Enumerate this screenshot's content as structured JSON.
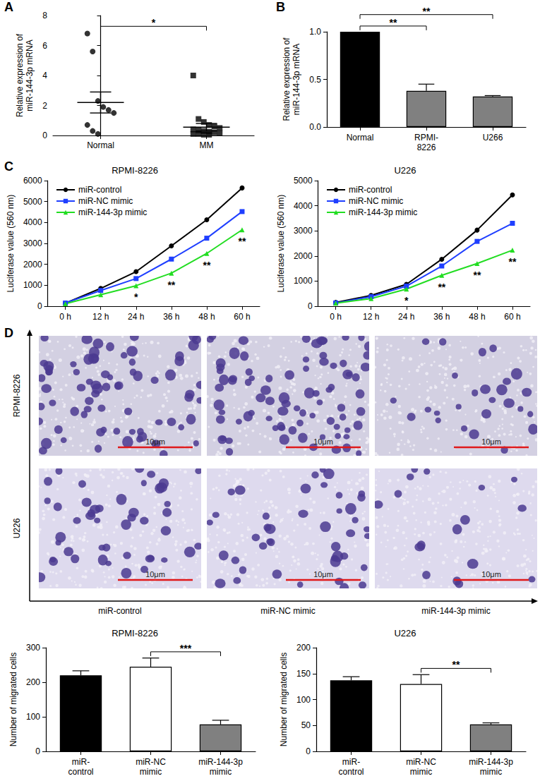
{
  "chart_data": [
    {
      "panel": "A",
      "type": "scatter",
      "categories": [
        "Normal",
        "MM"
      ],
      "points": [
        [
          6.8,
          5.6,
          2.3,
          1.9,
          1.7,
          1.5,
          0.7,
          0.3,
          0.1
        ],
        [
          4.0,
          1.1,
          0.9,
          0.7,
          0.6,
          0.5,
          0.4,
          0.35,
          0.3,
          0.25,
          0.2,
          0.15,
          0.1,
          0.1,
          0.05,
          0.05
        ]
      ],
      "markers": [
        "circle",
        "square"
      ],
      "color": "#000000",
      "mean": [
        2.2,
        0.55
      ],
      "error": [
        0.7,
        0.25
      ],
      "ylabel": "Relative expression of\nmiR-144-3p mRNA",
      "ylim": [
        0,
        8
      ],
      "yticks": [
        0,
        2,
        4,
        6,
        8
      ],
      "annotations": [
        {
          "text": "*",
          "from": 0,
          "to": 1
        }
      ]
    },
    {
      "panel": "B",
      "type": "bar",
      "categories": [
        "Normal",
        "RPMI-\n8226",
        "U266"
      ],
      "values": [
        1.0,
        0.38,
        0.32
      ],
      "error": [
        0,
        0.07,
        0.01
      ],
      "colors": [
        "#000000",
        "#808080",
        "#808080"
      ],
      "ylabel": "Relative expression of\nmiR-144-3p mRNA",
      "ylim": [
        0,
        1
      ],
      "yticks": [
        {
          "value": 0,
          "label": "0.0"
        },
        {
          "value": 0.5,
          "label": "0.5"
        },
        {
          "value": 1,
          "label": "1.0"
        }
      ],
      "annotations": [
        {
          "text": "**",
          "from": 0,
          "to": 1
        },
        {
          "text": "**",
          "from": 0,
          "to": 2
        }
      ]
    },
    {
      "panel": "C",
      "type": "line",
      "title": "RPMI-8226",
      "categories": [
        "0 h",
        "12 h",
        "24 h",
        "36 h",
        "48 h",
        "60 h"
      ],
      "series": [
        {
          "name": "miR-control",
          "color": "#000000",
          "marker": "circle",
          "values": [
            150,
            850,
            1650,
            2880,
            4130,
            5650
          ]
        },
        {
          "name": "miR-NC mimic",
          "color": "#1f3fff",
          "marker": "square",
          "values": [
            150,
            750,
            1320,
            2250,
            3250,
            4520
          ]
        },
        {
          "name": "miR-144-3p mimic",
          "color": "#22dd22",
          "marker": "triangle",
          "values": [
            120,
            550,
            980,
            1580,
            2520,
            3650
          ]
        }
      ],
      "ylabel": "Luciferase value (560 nm)",
      "ylim": [
        0,
        6000
      ],
      "yticks": [
        0,
        1000,
        2000,
        3000,
        4000,
        5000,
        6000
      ],
      "legend": "upper left",
      "annotations": [
        {
          "text": "*",
          "x": "24 h",
          "series": "miR-144-3p mimic"
        },
        {
          "text": "**",
          "x": "36 h",
          "series": "miR-144-3p mimic"
        },
        {
          "text": "**",
          "x": "48 h",
          "series": "miR-144-3p mimic"
        },
        {
          "text": "**",
          "x": "60 h",
          "series": "miR-144-3p mimic"
        }
      ]
    },
    {
      "type": "line",
      "title": "U226",
      "categories": [
        "0 h",
        "12 h",
        "24 h",
        "36 h",
        "48 h",
        "60 h"
      ],
      "series": [
        {
          "name": "miR-control",
          "color": "#000000",
          "marker": "circle",
          "values": [
            150,
            430,
            870,
            1870,
            3030,
            4430
          ]
        },
        {
          "name": "miR-NC mimic",
          "color": "#1f3fff",
          "marker": "square",
          "values": [
            130,
            380,
            800,
            1600,
            2580,
            3300
          ]
        },
        {
          "name": "miR-144-3p mimic",
          "color": "#22dd22",
          "marker": "triangle",
          "values": [
            120,
            300,
            680,
            1230,
            1700,
            2230
          ]
        }
      ],
      "ylabel": "Luciferase value (560 nm)",
      "ylim": [
        0,
        5000
      ],
      "yticks": [
        0,
        1000,
        2000,
        3000,
        4000,
        5000
      ],
      "legend": "upper left",
      "annotations": [
        {
          "text": "*",
          "x": "24 h",
          "series": "miR-144-3p mimic"
        },
        {
          "text": "**",
          "x": "36 h",
          "series": "miR-144-3p mimic"
        },
        {
          "text": "**",
          "x": "48 h",
          "series": "miR-144-3p mimic"
        },
        {
          "text": "**",
          "x": "60 h",
          "series": "miR-144-3p mimic"
        }
      ]
    },
    {
      "type": "bar",
      "title": "RPMI-8226",
      "categories": [
        "miR-\ncontrol",
        "miR-NC\nmimic",
        "miR-144-3p\nmimic"
      ],
      "values": [
        220,
        245,
        78
      ],
      "error": [
        13,
        25,
        12
      ],
      "colors": [
        "#000000",
        "#ffffff",
        "#808080"
      ],
      "ylabel": "Number of migrated cells",
      "ylim": [
        0,
        300
      ],
      "yticks": [
        0,
        100,
        200,
        300
      ],
      "annotations": [
        {
          "text": "***",
          "from": 1,
          "to": 2
        }
      ]
    },
    {
      "type": "bar",
      "title": "U226",
      "categories": [
        "miR-\ncontrol",
        "miR-NC\nmimic",
        "miR-144-3p\nmimic"
      ],
      "values": [
        137,
        130,
        52
      ],
      "error": [
        7,
        18,
        3
      ],
      "colors": [
        "#000000",
        "#ffffff",
        "#808080"
      ],
      "ylabel": "Number of migrated cells",
      "ylim": [
        0,
        200
      ],
      "yticks": [
        0,
        50,
        100,
        150,
        200
      ],
      "annotations": [
        {
          "text": "**",
          "from": 1,
          "to": 2
        }
      ]
    }
  ],
  "micrographs": {
    "panel": "D",
    "rows": [
      "RPMI-8226",
      "U226"
    ],
    "columns": [
      "miR-control",
      "miR-NC mimic",
      "miR-144-3p mimic"
    ],
    "scale_bar": "10μm"
  }
}
